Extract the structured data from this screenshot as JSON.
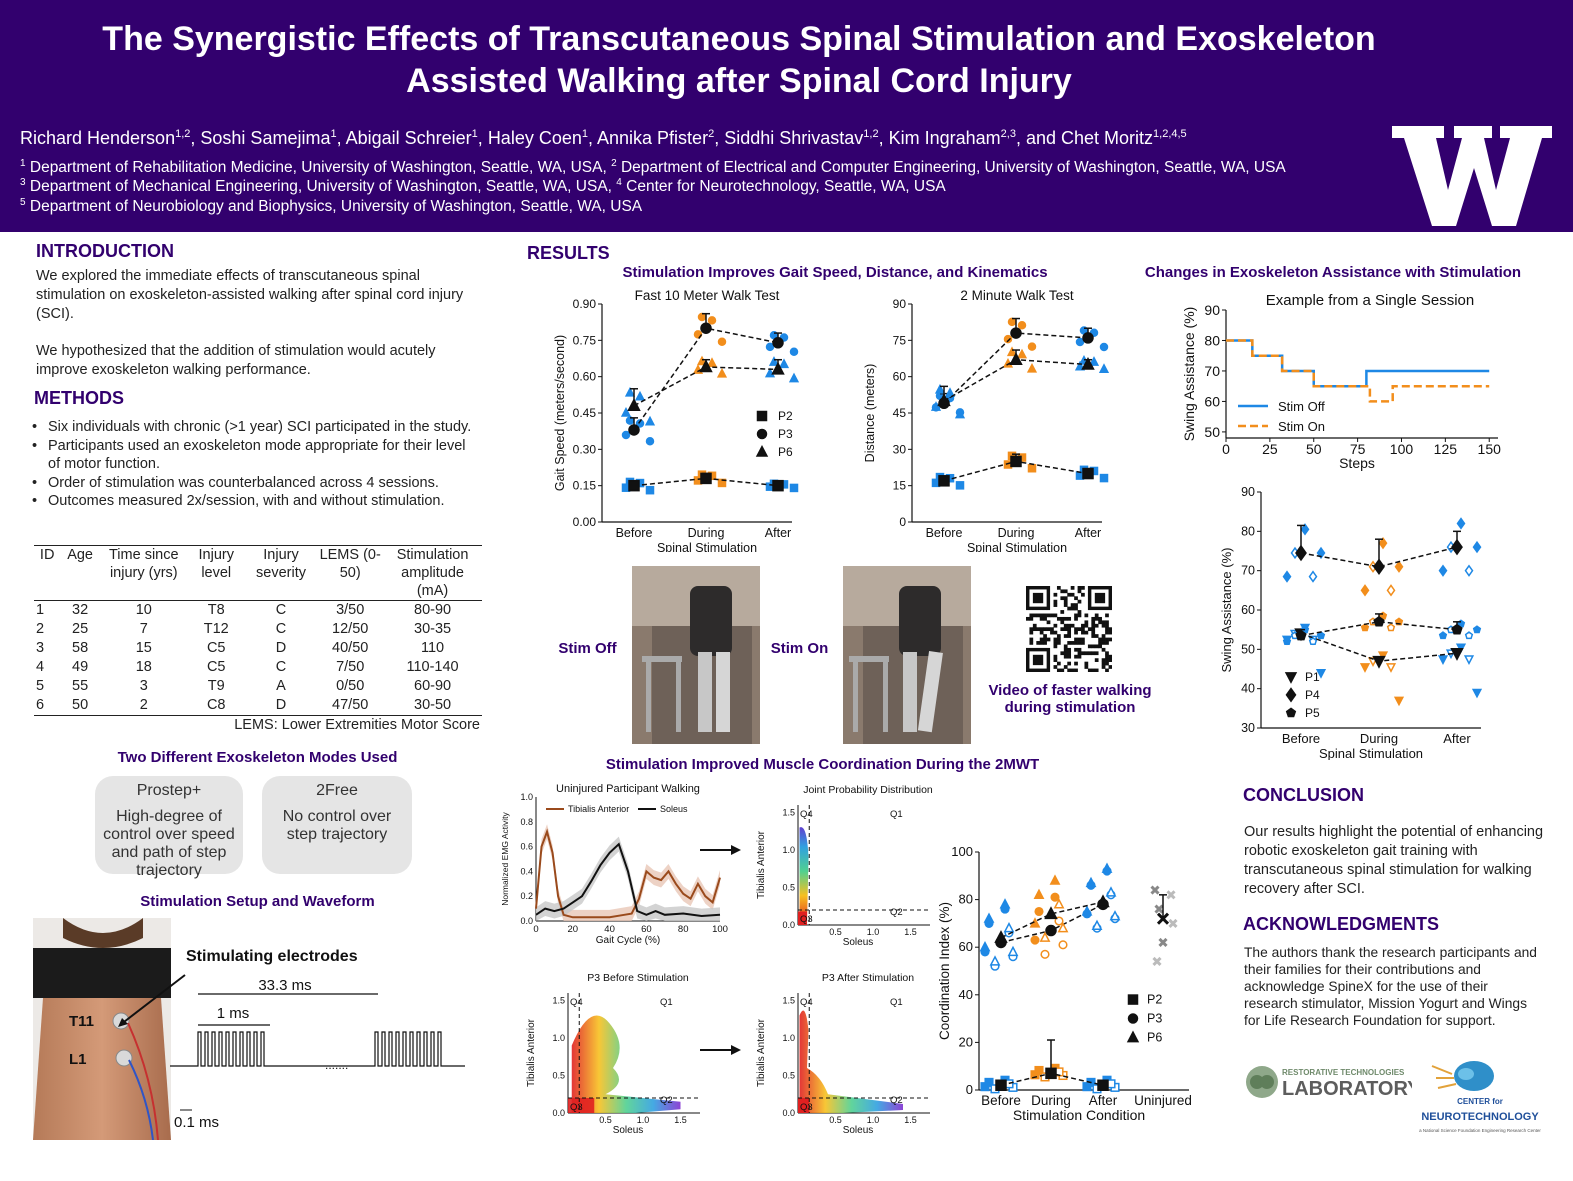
{
  "header": {
    "title_line1": "The Synergistic Effects of Transcutaneous Spinal Stimulation and Exoskeleton",
    "title_line2": "Assisted Walking after Spinal Cord Injury",
    "authors": [
      {
        "name": "Richard Henderson",
        "sup": "1,2"
      },
      {
        "name": "Soshi Samejima",
        "sup": "1"
      },
      {
        "name": "Abigail Schreier",
        "sup": "1"
      },
      {
        "name": "Haley Coen",
        "sup": "1"
      },
      {
        "name": "Annika Pfister",
        "sup": "2"
      },
      {
        "name": "Siddhi Shrivastav",
        "sup": "1,2"
      },
      {
        "name": "Kim Ingraham",
        "sup": "2,3"
      },
      {
        "name": "Chet Moritz",
        "sup": "1,2,4,5"
      }
    ],
    "affil_1": "Department of Rehabilitation Medicine, University of Washington, Seattle, WA, USA, ",
    "affil_2": "Department of Electrical and Computer Engineering, University of Washington, Seattle, WA, USA",
    "affil_3": "Department of Mechanical Engineering, University of Washington, Seattle, WA, USA, ",
    "affil_4": "Center for Neurotechnology, Seattle, WA, USA",
    "affil_5": "Department of Neurobiology and Biophysics, University of Washington, Seattle, WA, USA",
    "logo_letter": "W",
    "colors": {
      "purple": "#32006e",
      "blue": "#1e88e5",
      "orange": "#f28e1c"
    }
  },
  "intro": {
    "title": "INTRODUCTION",
    "p1": "We explored the immediate effects of transcutaneous spinal stimulation on exoskeleton-assisted walking after spinal cord injury (SCI).",
    "p2": "We hypothesized that the addition of stimulation would acutely improve exoskeleton walking performance."
  },
  "methods": {
    "title": "METHODS",
    "bullets": [
      "Six individuals with chronic (>1 year) SCI participated in the study.",
      "Participants used an exoskeleton mode appropriate for their level of motor function.",
      "Order of stimulation was counterbalanced across 4 sessions.",
      "Outcomes measured 2x/session, with and without stimulation."
    ],
    "table": {
      "headers": [
        "ID",
        "Age",
        "Time since injury (yrs)",
        "Injury level",
        "Injury severity",
        "LEMS (0-50)",
        "Stimulation amplitude (mA)"
      ],
      "rows": [
        [
          "1",
          "32",
          "10",
          "T8",
          "C",
          "3/50",
          "80-90"
        ],
        [
          "2",
          "25",
          "7",
          "T12",
          "C",
          "12/50",
          "30-35"
        ],
        [
          "3",
          "58",
          "15",
          "C5",
          "D",
          "40/50",
          "110"
        ],
        [
          "4",
          "49",
          "18",
          "C5",
          "C",
          "7/50",
          "110-140"
        ],
        [
          "5",
          "55",
          "3",
          "T9",
          "A",
          "0/50",
          "60-90"
        ],
        [
          "6",
          "50",
          "2",
          "C8",
          "D",
          "47/50",
          "30-50"
        ]
      ],
      "footnote": "LEMS: Lower Extremities Motor Score"
    },
    "modes_title": "Two Different Exoskeleton Modes Used",
    "mode1_name": "Prostep+",
    "mode1_desc": "High-degree of control over speed and path of step trajectory",
    "mode2_name": "2Free",
    "mode2_desc": "No control over step trajectory",
    "setup_title": "Stimulation Setup and Waveform",
    "electrodes_label": "Stimulating electrodes",
    "t11": "T11",
    "l1": "L1",
    "period": "33.3 ms",
    "burst": "1 ms",
    "pulse": "0.1 ms"
  },
  "results": {
    "title": "RESULTS",
    "sub1": "Stimulation Improves Gait Speed, Distance, and Kinematics",
    "sub2": "Changes in Exoskeleton Assistance with Stimulation",
    "sub3": "Stimulation Improved Muscle Coordination During the 2MWT",
    "stim_off": "Stim Off",
    "stim_on": "Stim On",
    "video_caption": "Video of faster walking during stimulation"
  },
  "conclusion": {
    "title": "CONCLUSION",
    "text": "Our results highlight the potential of enhancing robotic exoskeleton gait training with transcutaneous spinal stimulation for walking recovery after SCI."
  },
  "ack": {
    "title": "ACKNOWLEDGMENTS",
    "text": "The authors thank the research participants and their families for their contributions and acknowledge SpineX for the use of their research stimulator, Mission Yogurt and Wings for Life Research Foundation for support.",
    "lab1_small": "RESTORATIVE TECHNOLOGIES",
    "lab1_big": "LABORATORY",
    "lab2_small": "CENTER for",
    "lab2_big": "NEUROTECHNOLOGY",
    "lab2_tag": "a National Science Foundation Engineering Research Center"
  },
  "chart_data": [
    {
      "id": "walk10",
      "type": "scatter",
      "title": "Fast 10 Meter Walk Test",
      "xlabel": "Spinal Stimulation",
      "ylabel": "Gait Speed (meters/second)",
      "categories": [
        "Before",
        "During",
        "After"
      ],
      "ylim": [
        0,
        0.9
      ],
      "yticks": [
        "0.00",
        "0.15",
        "0.30",
        "0.45",
        "0.60",
        "0.75",
        "0.90"
      ],
      "legend": [
        "P2",
        "P3",
        "P6"
      ],
      "series": [
        {
          "name": "P2",
          "marker": "square",
          "means": [
            0.15,
            0.18,
            0.15
          ],
          "err": [
            0.02,
            0.02,
            0.01
          ]
        },
        {
          "name": "P3",
          "marker": "circle",
          "means": [
            0.38,
            0.8,
            0.74
          ],
          "err": [
            0.05,
            0.06,
            0.04
          ]
        },
        {
          "name": "P6",
          "marker": "triangle",
          "means": [
            0.48,
            0.64,
            0.63
          ],
          "err": [
            0.07,
            0.03,
            0.04
          ]
        }
      ]
    },
    {
      "id": "walk2",
      "type": "scatter",
      "title": "2 Minute Walk Test",
      "xlabel": "Spinal Stimulation",
      "ylabel": "Distance (meters)",
      "categories": [
        "Before",
        "During",
        "After"
      ],
      "ylim": [
        0,
        90
      ],
      "yticks": [
        "0",
        "15",
        "30",
        "45",
        "60",
        "75",
        "90"
      ],
      "series": [
        {
          "name": "P2",
          "marker": "square",
          "means": [
            17,
            25,
            20
          ],
          "err": [
            2,
            3,
            2
          ]
        },
        {
          "name": "P3",
          "marker": "circle",
          "means": [
            49,
            78,
            76
          ],
          "err": [
            4,
            6,
            4
          ]
        },
        {
          "name": "P6",
          "marker": "triangle",
          "means": [
            50,
            67,
            65
          ],
          "err": [
            6,
            4,
            2
          ]
        }
      ]
    },
    {
      "id": "swing_session",
      "type": "line",
      "title": "Example from a Single Session",
      "xlabel": "Steps",
      "ylabel": "Swing Assistance (%)",
      "xlim": [
        0,
        155
      ],
      "ylim": [
        48,
        90
      ],
      "xticks": [
        "0",
        "25",
        "50",
        "75",
        "100",
        "125",
        "150"
      ],
      "yticks": [
        "50",
        "60",
        "70",
        "80",
        "90"
      ],
      "series": [
        {
          "name": "Stim Off",
          "x": [
            0,
            15,
            15,
            32,
            32,
            50,
            50,
            80,
            80,
            150
          ],
          "y": [
            80,
            80,
            75,
            75,
            70,
            70,
            65,
            65,
            70,
            70
          ]
        },
        {
          "name": "Stim On",
          "x": [
            0,
            15,
            15,
            32,
            32,
            50,
            50,
            75,
            75,
            82,
            82,
            95,
            95,
            150
          ],
          "y": [
            80,
            80,
            75,
            75,
            70,
            70,
            65,
            65,
            65,
            65,
            60,
            60,
            65,
            65
          ]
        }
      ]
    },
    {
      "id": "swing_assist",
      "type": "scatter",
      "xlabel": "Spinal Stimulation",
      "ylabel": "Swing Assistance (%)",
      "categories": [
        "Before",
        "During",
        "After"
      ],
      "ylim": [
        30,
        90
      ],
      "yticks": [
        "30",
        "40",
        "50",
        "60",
        "70",
        "80",
        "90"
      ],
      "legend": [
        "P1",
        "P4",
        "P5"
      ],
      "series": [
        {
          "name": "P1",
          "marker": "tri-down",
          "means": [
            54,
            47,
            49
          ]
        },
        {
          "name": "P4",
          "marker": "diamond",
          "means": [
            74.5,
            71,
            76
          ],
          "err": [
            7,
            7,
            4
          ]
        },
        {
          "name": "P5",
          "marker": "pentagon",
          "means": [
            53.5,
            57,
            55
          ],
          "err": [
            1.5,
            2,
            2
          ]
        }
      ]
    },
    {
      "id": "emg",
      "type": "line",
      "title": "Uninjured Participant Walking",
      "xlabel": "Gait Cycle (%)",
      "ylabel": "Normalized EMG Activity",
      "xticks": [
        "0",
        "20",
        "40",
        "60",
        "80",
        "100"
      ],
      "yticks": [
        "0.0",
        "0.2",
        "0.4",
        "0.6",
        "0.8",
        "1.0"
      ],
      "series": [
        {
          "name": "Tibialis Anterior",
          "x": [
            0,
            3,
            6,
            9,
            12,
            15,
            20,
            30,
            40,
            48,
            52,
            56,
            60,
            64,
            68,
            72,
            76,
            80,
            84,
            88,
            92,
            96,
            100
          ],
          "y": [
            0.1,
            0.6,
            0.72,
            0.55,
            0.2,
            0.05,
            0.03,
            0.03,
            0.03,
            0.05,
            0.06,
            0.18,
            0.4,
            0.35,
            0.33,
            0.4,
            0.3,
            0.22,
            0.18,
            0.3,
            0.2,
            0.15,
            0.35
          ]
        },
        {
          "name": "Soleus",
          "x": [
            0,
            5,
            10,
            15,
            20,
            25,
            30,
            35,
            40,
            45,
            50,
            55,
            60,
            65,
            70,
            80,
            90,
            100
          ],
          "y": [
            0.05,
            0.1,
            0.08,
            0.1,
            0.15,
            0.2,
            0.32,
            0.45,
            0.55,
            0.62,
            0.4,
            0.08,
            0.05,
            0.08,
            0.05,
            0.06,
            0.04,
            0.05
          ]
        }
      ]
    },
    {
      "id": "coord",
      "type": "scatter",
      "xlabel": "Stimulation Condition",
      "ylabel": "Coordination Index (%)",
      "categories": [
        "Before",
        "During",
        "After",
        "Uninjured"
      ],
      "ylim": [
        0,
        100
      ],
      "yticks": [
        "0",
        "20",
        "40",
        "60",
        "80",
        "100"
      ],
      "legend": [
        "P2",
        "P3",
        "P6"
      ],
      "series": [
        {
          "name": "P2",
          "marker": "square",
          "means": [
            2,
            7,
            2
          ]
        },
        {
          "name": "P3",
          "marker": "circle",
          "means": [
            62,
            67,
            78
          ]
        },
        {
          "name": "P6",
          "marker": "triangle",
          "means": [
            64,
            74,
            79
          ]
        },
        {
          "name": "Uninjured",
          "marker": "x",
          "means": [
            null,
            null,
            null,
            72
          ]
        }
      ]
    }
  ],
  "jpd": {
    "title": "Joint Probability Distribution",
    "p3_before": "P3 Before Stimulation",
    "p3_after": "P3 After Stimulation",
    "xlabel": "Soleus",
    "ylabel": "Tibialis Anterior",
    "q1": "Q1",
    "q2": "Q2",
    "q3": "Q3",
    "q4": "Q4",
    "ticks": [
      "0.0",
      "0.5",
      "1.0",
      "1.5"
    ]
  }
}
